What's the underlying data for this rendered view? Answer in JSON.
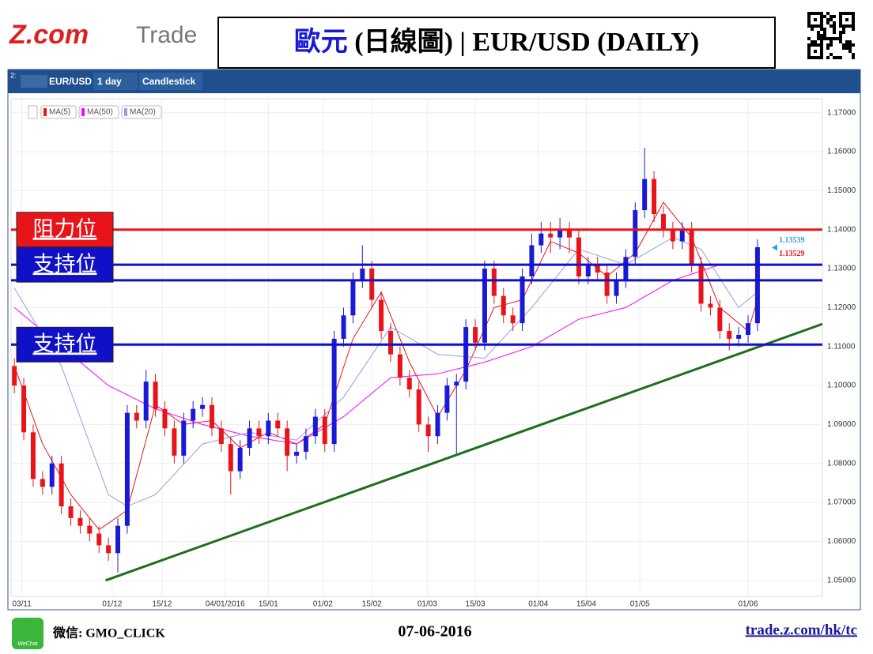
{
  "header": {
    "logo_main": "Z.com",
    "logo_sub": "Trade",
    "title_cn": "歐元",
    "title_rest": "(日線圖) | EUR/USD (DAILY)"
  },
  "toolbar": {
    "panel": "2:",
    "symbol": "EUR/USD",
    "interval": "1 day",
    "style": "Candlestick"
  },
  "chart_data": {
    "type": "candlestick",
    "up_color": "#1a1ad6",
    "down_color": "#e8141a",
    "open": [
      1.105,
      1.1,
      1.088,
      1.076,
      1.074,
      1.08,
      1.069,
      1.066,
      1.064,
      1.062,
      1.059,
      1.057,
      1.064,
      1.093,
      1.091,
      1.101,
      1.094,
      1.089,
      1.082,
      1.091,
      1.094,
      1.095,
      1.089,
      1.085,
      1.078,
      1.084,
      1.089,
      1.087,
      1.091,
      1.089,
      1.082,
      1.083,
      1.087,
      1.092,
      1.085,
      1.112,
      1.118,
      1.127,
      1.13,
      1.122,
      1.114,
      1.108,
      1.102,
      1.099,
      1.09,
      1.087,
      1.093,
      1.1,
      1.101,
      1.115,
      1.111,
      1.13,
      1.123,
      1.118,
      1.116,
      1.128,
      1.136,
      1.139,
      1.138,
      1.14,
      1.138,
      1.128,
      1.131,
      1.129,
      1.123,
      1.127,
      1.133,
      1.145,
      1.153,
      1.144,
      1.14,
      1.137,
      1.14,
      1.131,
      1.121,
      1.12,
      1.114,
      1.112,
      1.113,
      1.116
    ],
    "high": [
      1.107,
      1.102,
      1.09,
      1.078,
      1.082,
      1.082,
      1.071,
      1.068,
      1.066,
      1.064,
      1.061,
      1.066,
      1.095,
      1.095,
      1.104,
      1.103,
      1.096,
      1.091,
      1.093,
      1.096,
      1.097,
      1.097,
      1.091,
      1.087,
      1.086,
      1.091,
      1.091,
      1.093,
      1.093,
      1.091,
      1.085,
      1.089,
      1.094,
      1.094,
      1.114,
      1.12,
      1.129,
      1.136,
      1.132,
      1.124,
      1.116,
      1.11,
      1.104,
      1.101,
      1.092,
      1.095,
      1.102,
      1.103,
      1.117,
      1.117,
      1.132,
      1.132,
      1.125,
      1.12,
      1.13,
      1.139,
      1.142,
      1.142,
      1.143,
      1.142,
      1.14,
      1.133,
      1.133,
      1.131,
      1.129,
      1.135,
      1.147,
      1.161,
      1.155,
      1.146,
      1.142,
      1.142,
      1.142,
      1.133,
      1.123,
      1.122,
      1.116,
      1.115,
      1.118,
      1.1375
    ],
    "low": [
      1.098,
      1.086,
      1.074,
      1.072,
      1.072,
      1.067,
      1.064,
      1.062,
      1.06,
      1.057,
      1.055,
      1.052,
      1.062,
      1.089,
      1.089,
      1.092,
      1.087,
      1.08,
      1.08,
      1.089,
      1.092,
      1.087,
      1.083,
      1.072,
      1.076,
      1.082,
      1.085,
      1.085,
      1.087,
      1.078,
      1.08,
      1.081,
      1.085,
      1.083,
      1.083,
      1.11,
      1.116,
      1.125,
      1.12,
      1.112,
      1.106,
      1.1,
      1.097,
      1.088,
      1.083,
      1.085,
      1.091,
      1.082,
      1.099,
      1.109,
      1.109,
      1.121,
      1.116,
      1.114,
      1.114,
      1.126,
      1.134,
      1.134,
      1.135,
      1.134,
      1.126,
      1.126,
      1.127,
      1.121,
      1.121,
      1.125,
      1.131,
      1.143,
      1.142,
      1.138,
      1.135,
      1.135,
      1.129,
      1.119,
      1.118,
      1.112,
      1.109,
      1.11,
      1.111,
      1.114
    ],
    "close": [
      1.1,
      1.088,
      1.076,
      1.074,
      1.08,
      1.069,
      1.066,
      1.064,
      1.062,
      1.059,
      1.057,
      1.064,
      1.093,
      1.091,
      1.101,
      1.094,
      1.089,
      1.082,
      1.091,
      1.094,
      1.095,
      1.089,
      1.085,
      1.078,
      1.084,
      1.089,
      1.087,
      1.091,
      1.089,
      1.082,
      1.083,
      1.087,
      1.092,
      1.085,
      1.112,
      1.118,
      1.127,
      1.13,
      1.122,
      1.114,
      1.108,
      1.102,
      1.099,
      1.09,
      1.087,
      1.093,
      1.1,
      1.101,
      1.115,
      1.111,
      1.13,
      1.123,
      1.118,
      1.116,
      1.128,
      1.136,
      1.139,
      1.138,
      1.14,
      1.138,
      1.128,
      1.131,
      1.129,
      1.123,
      1.127,
      1.133,
      1.145,
      1.153,
      1.144,
      1.14,
      1.137,
      1.14,
      1.131,
      1.121,
      1.12,
      1.114,
      1.112,
      1.113,
      1.116,
      1.1355
    ],
    "series": [
      {
        "name": "MA(5)",
        "color": "#e8141a",
        "x": [
          0,
          3,
          6,
          9,
          12,
          15,
          18,
          21,
          24,
          27,
          30,
          33,
          36,
          39,
          42,
          45,
          48,
          51,
          54,
          57,
          60,
          63,
          66,
          69,
          72,
          75,
          78,
          79
        ],
        "values": [
          1.105,
          1.085,
          1.072,
          1.063,
          1.068,
          1.095,
          1.09,
          1.091,
          1.084,
          1.088,
          1.085,
          1.09,
          1.112,
          1.124,
          1.106,
          1.092,
          1.104,
          1.12,
          1.122,
          1.137,
          1.134,
          1.128,
          1.134,
          1.147,
          1.138,
          1.12,
          1.114,
          1.122
        ]
      },
      {
        "name": "MA(50)",
        "color": "#ff00ff",
        "x": [
          0,
          10,
          15,
          20,
          25,
          30,
          35,
          40,
          45,
          50,
          55,
          60,
          65,
          70,
          75,
          79
        ],
        "values": [
          1.12,
          1.1,
          1.094,
          1.09,
          1.087,
          1.085,
          1.092,
          1.102,
          1.103,
          1.106,
          1.11,
          1.117,
          1.12,
          1.127,
          1.131,
          1.131
        ]
      },
      {
        "name": "MA(20)",
        "color": "#9999ee",
        "x": [
          0,
          5,
          10,
          12,
          15,
          20,
          25,
          30,
          35,
          40,
          45,
          50,
          55,
          60,
          65,
          70,
          73,
          77,
          79
        ],
        "values": [
          1.125,
          1.105,
          1.072,
          1.069,
          1.072,
          1.085,
          1.088,
          1.086,
          1.097,
          1.115,
          1.108,
          1.107,
          1.12,
          1.135,
          1.131,
          1.138,
          1.135,
          1.12,
          1.124
        ]
      }
    ],
    "levels": [
      {
        "label": "阻力位",
        "value": 1.14,
        "color": "#e8141a"
      },
      {
        "label": "支持位",
        "value": 1.131,
        "color": "#1010c8"
      },
      {
        "value": 1.127,
        "color": "#1010c8"
      },
      {
        "label": "支持位",
        "value": 1.1105,
        "color": "#1010c8"
      }
    ],
    "trendline": {
      "x": [
        9.7,
        85.9
      ],
      "values": [
        1.05,
        1.1158
      ],
      "color": "#1e6e1e"
    },
    "last_prices": [
      {
        "value": 1.13539,
        "color": "#2aa0e0"
      },
      {
        "value": 1.13529,
        "color": "#e8141a"
      }
    ],
    "xlim": [
      -0.35,
      85.9
    ],
    "ylim": [
      1.0459,
      1.1736
    ],
    "xticks": [
      {
        "value": 0.8,
        "label": "03/11"
      },
      {
        "value": 10.4,
        "label": "01/12"
      },
      {
        "value": 15.7,
        "label": "15/12"
      },
      {
        "value": 22.4,
        "label": "04/01/2016"
      },
      {
        "value": 27.0,
        "label": "15/01"
      },
      {
        "value": 32.8,
        "label": "01/02"
      },
      {
        "value": 38.0,
        "label": "15/02"
      },
      {
        "value": 43.9,
        "label": "01/03"
      },
      {
        "value": 49.0,
        "label": "15/03"
      },
      {
        "value": 55.7,
        "label": "01/04"
      },
      {
        "value": 60.8,
        "label": "15/04"
      },
      {
        "value": 66.5,
        "label": "01/05"
      },
      {
        "value": 78.0,
        "label": "01/06"
      }
    ],
    "yticks": [
      {
        "value": 1.05,
        "label": "1.05000"
      },
      {
        "value": 1.06,
        "label": "1.06000"
      },
      {
        "value": 1.07,
        "label": "1.07000"
      },
      {
        "value": 1.08,
        "label": "1.08000"
      },
      {
        "value": 1.09,
        "label": "1.09000"
      },
      {
        "value": 1.1,
        "label": "1.10000"
      },
      {
        "value": 1.11,
        "label": "1.11000"
      },
      {
        "value": 1.12,
        "label": "1.12000"
      },
      {
        "value": 1.13,
        "label": "1.13000"
      },
      {
        "value": 1.14,
        "label": "1.14000"
      },
      {
        "value": 1.15,
        "label": "1.15000"
      },
      {
        "value": 1.16,
        "label": "1.16000"
      },
      {
        "value": 1.17,
        "label": "1.17000"
      }
    ],
    "grid": true
  },
  "footer": {
    "wechat_icon": "WeChat",
    "wechat": "微信: GMO_CLICK",
    "date": "07-06-2016",
    "url": "trade.z.com/hk/tc"
  }
}
